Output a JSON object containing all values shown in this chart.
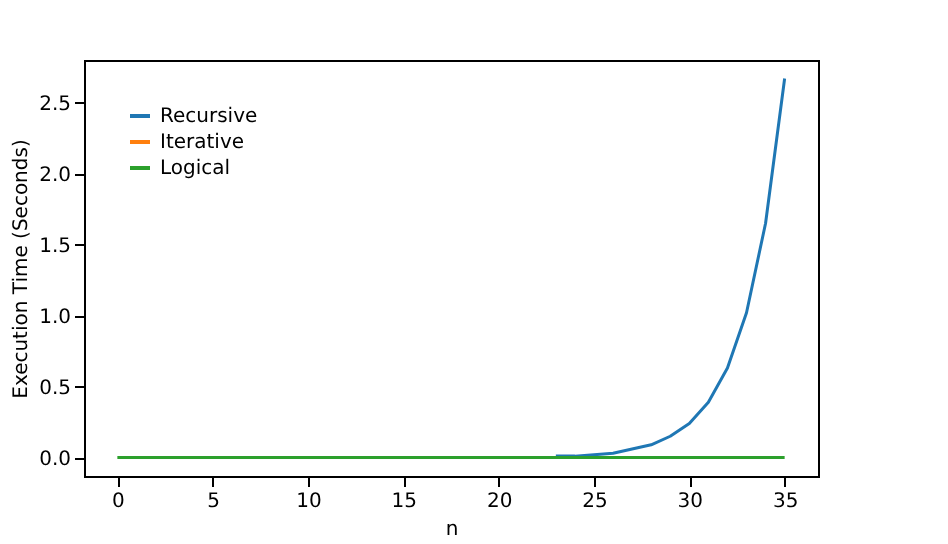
{
  "chart_data": {
    "type": "line",
    "xlabel": "n",
    "ylabel": "Execution Time (Seconds)",
    "x": [
      0,
      1,
      2,
      3,
      4,
      5,
      6,
      7,
      8,
      9,
      10,
      11,
      12,
      13,
      14,
      15,
      16,
      17,
      18,
      19,
      20,
      21,
      22,
      23,
      24,
      25,
      26,
      27,
      28,
      29,
      30,
      31,
      32,
      33,
      34,
      35
    ],
    "series": [
      {
        "name": "Recursive",
        "color": "#1f77b4",
        "values": [
          null,
          null,
          null,
          null,
          null,
          null,
          null,
          null,
          null,
          null,
          null,
          null,
          null,
          null,
          null,
          null,
          null,
          null,
          null,
          null,
          null,
          null,
          null,
          0.01,
          0.01,
          0.02,
          0.03,
          0.06,
          0.09,
          0.15,
          0.24,
          0.39,
          0.63,
          1.02,
          1.65,
          2.67
        ]
      },
      {
        "name": "Iterative",
        "color": "#ff7f0e",
        "values": [
          null,
          null,
          null,
          null,
          null,
          null,
          null,
          null,
          null,
          null,
          null,
          null,
          null,
          null,
          null,
          null,
          null,
          null,
          null,
          null,
          null,
          null,
          null,
          null,
          null,
          null,
          null,
          null,
          null,
          null,
          null,
          null,
          null,
          null,
          null,
          null
        ]
      },
      {
        "name": "Logical",
        "color": "#2ca02c",
        "values": [
          0,
          0,
          0,
          0,
          0,
          0,
          0,
          0,
          0,
          0,
          0,
          0,
          0,
          0,
          0,
          0,
          0,
          0,
          0,
          0,
          0,
          0,
          0,
          0,
          0,
          0,
          0,
          0,
          0,
          0,
          0,
          0,
          0,
          0,
          0,
          0
        ]
      }
    ],
    "xlim": [
      -1.75,
      36.75
    ],
    "xticks": [
      0,
      5,
      10,
      15,
      20,
      25,
      30,
      35
    ],
    "ylim": [
      -0.13,
      2.8
    ],
    "yticks": [
      {
        "value": 0,
        "label": "0.0"
      },
      0.5,
      {
        "value": 1,
        "label": "1.0"
      },
      1.5,
      {
        "value": 2,
        "label": "2.0"
      },
      2.5
    ],
    "legend": "top left",
    "grid": false,
    "marker": "none",
    "line_style": "solid"
  }
}
